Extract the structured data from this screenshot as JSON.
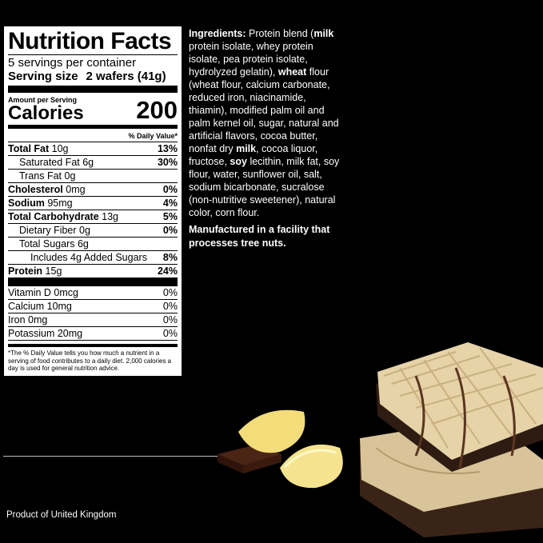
{
  "label": {
    "title": "Nutrition Facts",
    "servings": "5 servings per container",
    "serving_size_label": "Serving size",
    "serving_size_value": "2 wafers (41g)",
    "amount_per_serving": "Amount per Serving",
    "calories_label": "Calories",
    "calories_value": "200",
    "dv_header": "% Daily Value*",
    "nutrients": [
      {
        "name": "Total Fat",
        "amount": "10g",
        "pct": "13%",
        "bold": true,
        "indent": 0
      },
      {
        "name": "Saturated Fat",
        "amount": "6g",
        "pct": "30%",
        "bold": false,
        "indent": 1
      },
      {
        "name": "Trans Fat",
        "amount": "0g",
        "pct": "",
        "bold": false,
        "indent": 1
      },
      {
        "name": "Cholesterol",
        "amount": "0mg",
        "pct": "0%",
        "bold": true,
        "indent": 0
      },
      {
        "name": "Sodium",
        "amount": "95mg",
        "pct": "4%",
        "bold": true,
        "indent": 0
      },
      {
        "name": "Total Carbohydrate",
        "amount": "13g",
        "pct": "5%",
        "bold": true,
        "indent": 0
      },
      {
        "name": "Dietary Fiber",
        "amount": "0g",
        "pct": "0%",
        "bold": false,
        "indent": 1
      },
      {
        "name": "Total Sugars",
        "amount": "6g",
        "pct": "",
        "bold": false,
        "indent": 1
      },
      {
        "name": "Includes 4g Added Sugars",
        "amount": "",
        "pct": "8%",
        "bold": false,
        "indent": 2
      },
      {
        "name": "Protein",
        "amount": "15g",
        "pct": "24%",
        "bold": true,
        "indent": 0
      }
    ],
    "vitamins": [
      {
        "name": "Vitamin D 0mcg",
        "pct": "0%"
      },
      {
        "name": "Calcium 10mg",
        "pct": "0%"
      },
      {
        "name": "Iron 0mg",
        "pct": "0%"
      },
      {
        "name": "Potassium 20mg",
        "pct": "0%"
      }
    ],
    "footnote": "*The % Daily Value tells you how much a nutrient in a serving of food contributes to a daily diet. 2,000 calories a day is used for general nutrition advice."
  },
  "ingredients": [
    [
      {
        "t": "Ingredients:",
        "b": true
      },
      {
        "t": " Protein blend ("
      },
      {
        "t": "milk",
        "b": true
      }
    ],
    [
      {
        "t": "protein isolate, whey protein"
      }
    ],
    [
      {
        "t": "isolate, pea protein isolate,"
      }
    ],
    [
      {
        "t": "hydrolyzed gelatin), "
      },
      {
        "t": "wheat",
        "b": true
      },
      {
        "t": " flour"
      }
    ],
    [
      {
        "t": "(wheat flour, calcium carbonate,"
      }
    ],
    [
      {
        "t": "reduced iron, niacinamide,"
      }
    ],
    [
      {
        "t": "thiamin), modified palm oil and"
      }
    ],
    [
      {
        "t": "palm kernel oil, sugar, natural and"
      }
    ],
    [
      {
        "t": "artificial flavors, cocoa butter,"
      }
    ],
    [
      {
        "t": "nonfat dry "
      },
      {
        "t": "milk",
        "b": true
      },
      {
        "t": ", cocoa liquor,"
      }
    ],
    [
      {
        "t": "fructose, "
      },
      {
        "t": "soy",
        "b": true
      },
      {
        "t": " lecithin, milk fat, soy"
      }
    ],
    [
      {
        "t": "flour, water, sunflower oil, salt,"
      }
    ],
    [
      {
        "t": "sodium bicarbonate, sucralose"
      }
    ],
    [
      {
        "t": "(non-nutritive sweetener), natural"
      }
    ],
    [
      {
        "t": "color, corn flour."
      }
    ]
  ],
  "allergen_note": "Manufactured in a facility that processes tree nuts.",
  "origin": "Product of United Kingdom"
}
